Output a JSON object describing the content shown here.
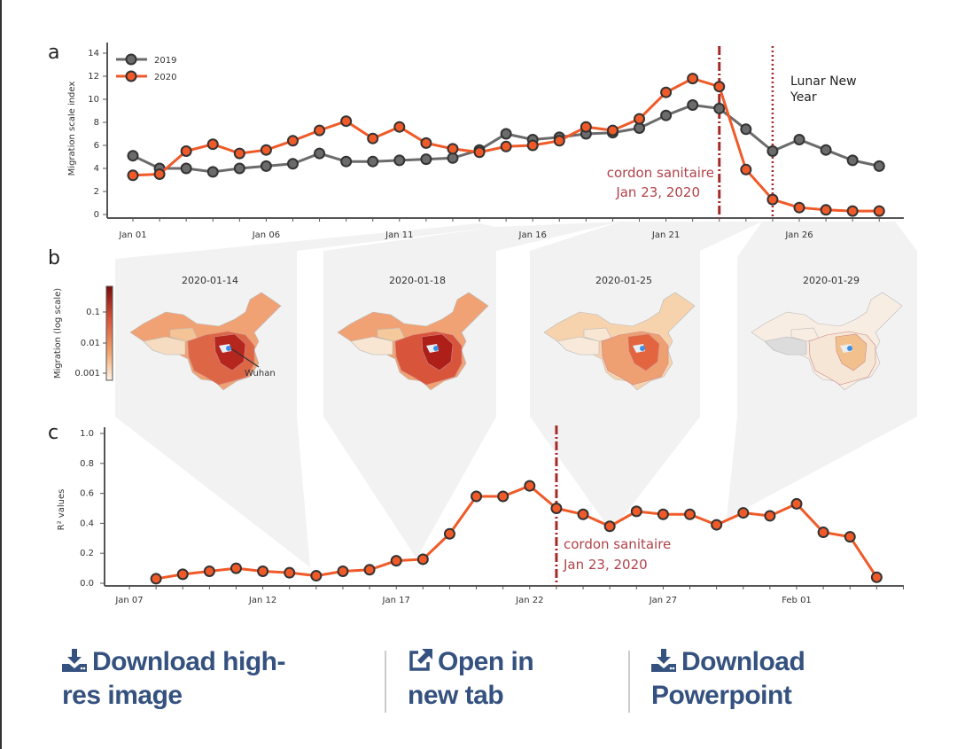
{
  "panels": {
    "a": "a",
    "b": "b",
    "c": "c"
  },
  "colors": {
    "y2019": "#6b6b6b",
    "y2020": "#f05a28",
    "annotation": "#a52a2a",
    "marker_edge": "#333333",
    "panel_bg": "#f2f2f2",
    "link": "#34517f"
  },
  "chart_data": [
    {
      "type": "line",
      "panel": "a",
      "ylabel": "Migration scale index",
      "ylim": [
        0,
        14
      ],
      "yticks": [
        "0",
        "2",
        "4",
        "6",
        "8",
        "10",
        "12",
        "14"
      ],
      "xticks": [
        "Jan 01",
        "Jan 06",
        "Jan 11",
        "Jan 16",
        "Jan 21",
        "Jan 26"
      ],
      "x_start": "Jan 01",
      "x_end": "Jan 29",
      "legend": "top-left",
      "series": [
        {
          "name": "2019",
          "values": [
            5.1,
            4.0,
            4.0,
            3.7,
            4.0,
            4.2,
            4.4,
            5.3,
            4.6,
            4.6,
            4.7,
            4.8,
            4.9,
            5.6,
            7.0,
            6.5,
            6.7,
            7.0,
            7.1,
            7.5,
            8.6,
            9.5,
            9.2,
            7.4,
            5.5,
            6.5,
            5.6,
            4.7,
            4.2
          ]
        },
        {
          "name": "2020",
          "values": [
            3.4,
            3.5,
            5.5,
            6.1,
            5.3,
            5.6,
            6.4,
            7.3,
            8.1,
            6.6,
            7.6,
            6.2,
            5.7,
            5.4,
            5.9,
            6.0,
            6.4,
            7.6,
            7.3,
            8.3,
            10.6,
            11.8,
            11.1,
            3.9,
            1.3,
            0.6,
            0.4,
            0.3,
            0.3
          ]
        }
      ],
      "annotations": [
        {
          "date": "Jan 23",
          "style": "dash-dot",
          "text_line1": "cordon sanitaire",
          "text_line2": "Jan 23, 2020"
        },
        {
          "date": "Jan 25",
          "style": "dotted",
          "text_line1": "Lunar New",
          "text_line2": "Year"
        }
      ]
    },
    {
      "type": "heatmap",
      "panel": "b",
      "colorbar_label": "Migration (log scale)",
      "colorbar_ticks": [
        "0.1",
        "0.01",
        "0.001"
      ],
      "city_label": "Wuhan",
      "maps": [
        {
          "date": "2020-01-14",
          "fills": [
            "#f0a274",
            "#f6dcc0",
            "#f4c396",
            "#dd6646",
            "#b5261e"
          ]
        },
        {
          "date": "2020-01-18",
          "fills": [
            "#f0a274",
            "#f8e6d3",
            "#f4c99c",
            "#d8543a",
            "#ae1f1a"
          ]
        },
        {
          "date": "2020-01-25",
          "fills": [
            "#f6d2ad",
            "#f8e9da",
            "#f8e6d3",
            "#eea073",
            "#e2653f"
          ]
        },
        {
          "date": "2020-01-29",
          "fills": [
            "#f8ede2",
            "#dcdcdc",
            "#f8ede2",
            "#f6e6d6",
            "#f2c08c"
          ]
        }
      ]
    },
    {
      "type": "line",
      "panel": "c",
      "ylabel": "R² values",
      "ylim": [
        0,
        1.0
      ],
      "yticks": [
        "0.0",
        "0.2",
        "0.4",
        "0.6",
        "0.8",
        "1.0"
      ],
      "xticks": [
        "Jan 07",
        "Jan 12",
        "Jan 17",
        "Jan 22",
        "Jan 27",
        "Feb 01"
      ],
      "x_start": "Jan 08",
      "x_end": "Feb 04",
      "series": [
        {
          "values": [
            0.03,
            0.06,
            0.08,
            0.1,
            0.08,
            0.07,
            0.05,
            0.08,
            0.09,
            0.15,
            0.16,
            0.33,
            0.58,
            0.58,
            0.65,
            0.5,
            0.46,
            0.38,
            0.48,
            0.46,
            0.46,
            0.39,
            0.47,
            0.45,
            0.53,
            0.34,
            0.31,
            0.04
          ]
        }
      ],
      "annotations": [
        {
          "date": "Jan 23",
          "style": "dash-dot",
          "text_line1": "cordon sanitaire",
          "text_line2": "Jan 23, 2020"
        }
      ]
    }
  ],
  "actions": {
    "download_hires": {
      "line1": "Download high-",
      "line2": "res image",
      "icon": "download-icon"
    },
    "open_new_tab": {
      "line1": "Open in",
      "line2": "new tab",
      "icon": "external-link-icon"
    },
    "download_ppt": {
      "line1": "Download",
      "line2": "Powerpoint",
      "icon": "download-icon"
    }
  }
}
